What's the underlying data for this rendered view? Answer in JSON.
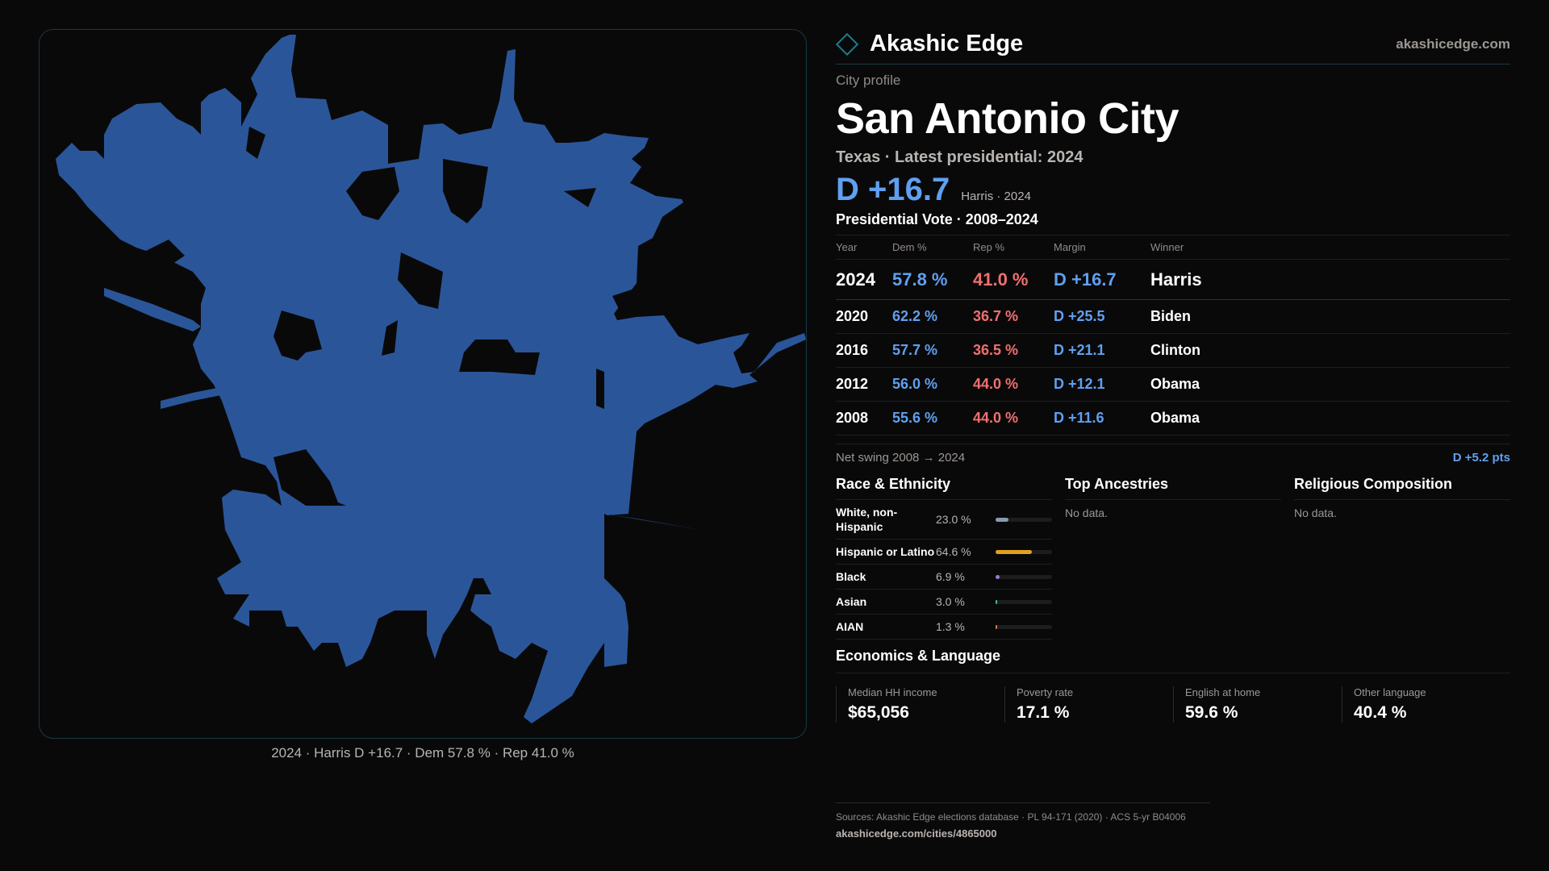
{
  "brand": {
    "name": "Akashic Edge",
    "url": "akashicedge.com"
  },
  "profile": {
    "kicker": "City profile",
    "title": "San Antonio City",
    "state": "Texas",
    "latest": "Latest presidential: 2024",
    "headline_margin": "D +16.7",
    "headline_meta": "Harris · 2024"
  },
  "vote": {
    "title": "Presidential Vote · 2008–2024",
    "headers": [
      "Year",
      "Dem %",
      "Rep %",
      "Margin",
      "Winner"
    ],
    "rows": [
      {
        "year": "2024",
        "dem": "57.8 %",
        "rep": "41.0 %",
        "margin": "D +16.7",
        "winner": "Harris"
      },
      {
        "year": "2020",
        "dem": "62.2 %",
        "rep": "36.7 %",
        "margin": "D +25.5",
        "winner": "Biden"
      },
      {
        "year": "2016",
        "dem": "57.7 %",
        "rep": "36.5 %",
        "margin": "D +21.1",
        "winner": "Clinton"
      },
      {
        "year": "2012",
        "dem": "56.0 %",
        "rep": "44.0 %",
        "margin": "D +12.1",
        "winner": "Obama"
      },
      {
        "year": "2008",
        "dem": "55.6 %",
        "rep": "44.0 %",
        "margin": "D +11.6",
        "winner": "Obama"
      }
    ],
    "swing_label": "Net swing 2008 → 2024",
    "swing_value": "D +5.2 pts"
  },
  "race": {
    "title": "Race & Ethnicity",
    "rows": [
      {
        "label": "White, non-Hispanic",
        "pct": "23.0 %",
        "value": 0.23,
        "color": "#8a9ab0"
      },
      {
        "label": "Hispanic or Latino",
        "pct": "64.6 %",
        "value": 0.646,
        "color": "#e0a020"
      },
      {
        "label": "Black",
        "pct": "6.9 %",
        "value": 0.069,
        "color": "#9a7ad0"
      },
      {
        "label": "Asian",
        "pct": "3.0 %",
        "value": 0.03,
        "color": "#40c090"
      },
      {
        "label": "AIAN",
        "pct": "1.3 %",
        "value": 0.013,
        "color": "#d07a40"
      }
    ]
  },
  "ancestries": {
    "title": "Top Ancestries",
    "empty": "No data."
  },
  "religion": {
    "title": "Religious Composition",
    "empty": "No data."
  },
  "economics": {
    "title": "Economics & Language",
    "items": [
      {
        "label": "Median HH income",
        "value": "$65,056"
      },
      {
        "label": "Poverty rate",
        "value": "17.1 %"
      },
      {
        "label": "English at home",
        "value": "59.6 %"
      },
      {
        "label": "Other language",
        "value": "40.4 %"
      }
    ]
  },
  "map": {
    "caption": "2024 · Harris D +16.7 · Dem 57.8 % · Rep 41.0 %",
    "fill_color": "#2a5699"
  },
  "sources": {
    "line": "Sources: Akashic Edge elections database · PL 94-171 (2020) · ACS 5-yr B04006",
    "url": "akashicedge.com/cities/4865000"
  }
}
